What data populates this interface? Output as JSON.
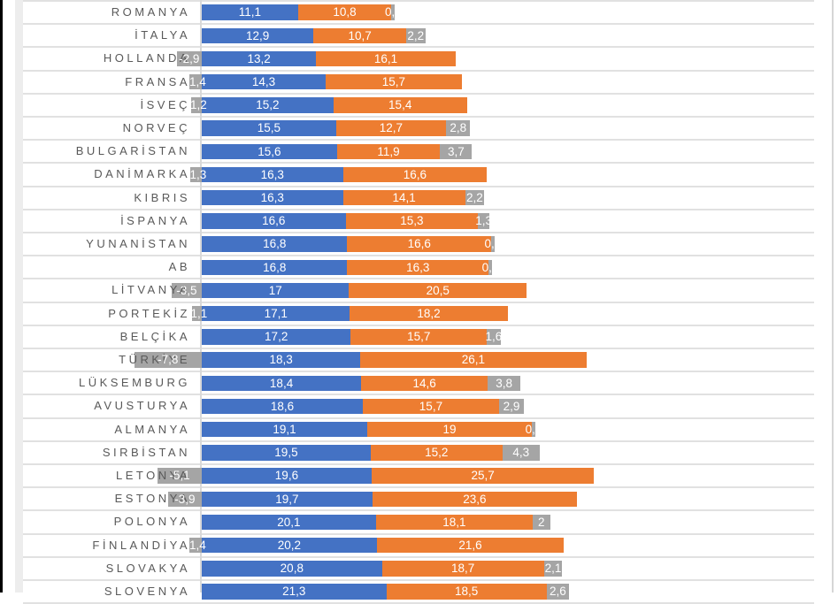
{
  "page": {
    "background_color": "#ffffff",
    "left_border_color": "#000000"
  },
  "chart_data": {
    "type": "bar",
    "subtype": "stacked-horizontal",
    "title": "",
    "xlabel": "",
    "ylabel": "",
    "xlim": [
      -10,
      70
    ],
    "grid": "horizontal category separator lines only",
    "legend_position": "not visible (cropped out)",
    "category_label_color": "#595959",
    "value_label_color": "#ffffff",
    "decimal_separator": ",",
    "categories": [
      "ROMANYA",
      "İTALYA",
      "HOLLANDA",
      "FRANSA",
      "İSVEÇ",
      "NORVEÇ",
      "BULGARİSTAN",
      "DANİMARKA",
      "KIBRIS",
      "İSPANYA",
      "YUNANİSTAN",
      "AB",
      "LİTVANYA",
      "PORTEKİZ",
      "BELÇİKA",
      "TÜRKİYE",
      "LÜKSEMBURG",
      "AVUSTURYA",
      "ALMANYA",
      "SIRBİSTAN",
      "LETONYA",
      "ESTONYA",
      "POLONYA",
      "FİNLANDİYA",
      "SLOVAKYA",
      "SLOVENYA"
    ],
    "series": [
      {
        "name": "series-1-blue",
        "color": "#4472C4",
        "values": [
          11.1,
          12.9,
          13.2,
          14.3,
          15.2,
          15.5,
          15.6,
          16.3,
          16.3,
          16.6,
          16.8,
          16.8,
          17,
          17.1,
          17.2,
          18.3,
          18.4,
          18.6,
          19.1,
          19.5,
          19.6,
          19.7,
          20.1,
          20.2,
          20.8,
          21.3
        ],
        "labels": [
          "11,1",
          "12,9",
          "13,2",
          "14,3",
          "15,2",
          "15,5",
          "15,6",
          "16,3",
          "16,3",
          "16,6",
          "16,8",
          "16,8",
          "17",
          "17,1",
          "17,2",
          "18,3",
          "18,4",
          "18,6",
          "19,1",
          "19,5",
          "19,6",
          "19,7",
          "20,1",
          "20,2",
          "20,8",
          "21,3"
        ]
      },
      {
        "name": "series-2-orange",
        "color": "#ED7D31",
        "values": [
          10.8,
          10.7,
          16.1,
          15.7,
          15.4,
          12.7,
          11.9,
          16.6,
          14.1,
          15.3,
          16.6,
          16.3,
          20.5,
          18.2,
          15.7,
          26.1,
          14.6,
          15.7,
          19,
          15.2,
          25.7,
          23.6,
          18.1,
          21.6,
          18.7,
          18.5
        ],
        "labels": [
          "10,8",
          "10,7",
          "16,1",
          "15,7",
          "15,4",
          "12,7",
          "11,9",
          "16,6",
          "14,1",
          "15,3",
          "16,6",
          "16,3",
          "20,5",
          "18,2",
          "15,7",
          "26,1",
          "14,6",
          "15,7",
          "19",
          "15,2",
          "25,7",
          "23,6",
          "18,1",
          "21,6",
          "18,7",
          "18,5"
        ]
      },
      {
        "name": "series-3-gray",
        "color": "#A5A5A5",
        "values": [
          0.4,
          2.2,
          -2.9,
          -1.4,
          -1.2,
          2.8,
          3.7,
          -1.3,
          2.2,
          1.3,
          0.4,
          0.4,
          -3.5,
          -1.1,
          1.6,
          -7.8,
          3.8,
          2.9,
          0.4,
          4.3,
          -5.1,
          -3.9,
          2,
          -1.4,
          2.1,
          2.6
        ],
        "labels": [
          "0,4",
          "2,2",
          "-2,9",
          "-1,4",
          "-1,2",
          "2,8",
          "3,7",
          "-1,3",
          "2,2",
          "1,3",
          "0,4",
          "0,4",
          "-3,5",
          "-1,1",
          "1,6",
          "-7,8",
          "3,8",
          "2,9",
          "0,4",
          "4,3",
          "-5,1",
          "-3,9",
          "2",
          "-1,4",
          "2,1",
          "2,6"
        ]
      }
    ]
  }
}
